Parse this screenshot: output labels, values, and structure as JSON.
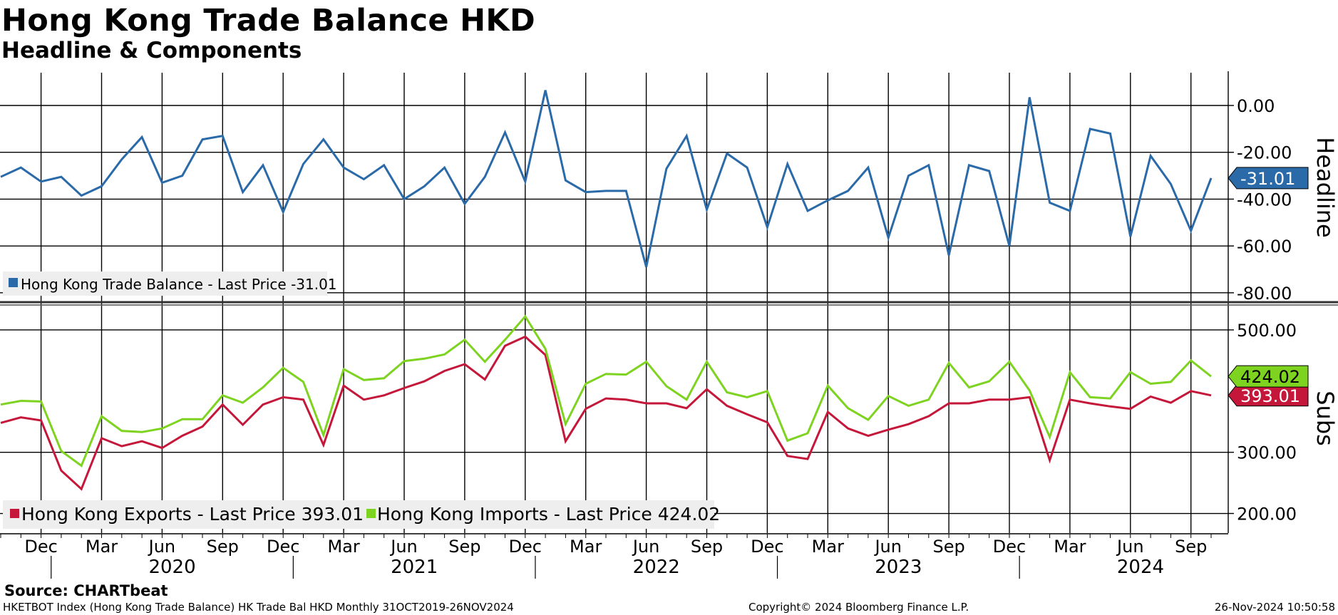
{
  "title": "Hong Kong Trade Balance HKD",
  "subtitle": "Headline & Components",
  "source": "Source: CHARTbeat",
  "footer": {
    "left": "HKETBOT Index (Hong Kong Trade Balance) HK Trade Bal HKD  Monthly 31OCT2019-26NOV2024",
    "mid": "Copyright© 2024 Bloomberg Finance L.P.",
    "right": "26-Nov-2024 10:50:58"
  },
  "colors": {
    "headline": "#2a6aa8",
    "exports": "#c4173a",
    "imports": "#7ed321",
    "grid": "#000000",
    "legend_bg": "#eeeeee"
  },
  "chart_data": [
    {
      "type": "line",
      "panel_label": "Headline",
      "ylim": [
        -84,
        14
      ],
      "yticks": [
        "0.00",
        "-20.00",
        "-40.00",
        "-60.00",
        "-80.00"
      ],
      "ytick_values": [
        0,
        -20,
        -40,
        -60,
        -80
      ],
      "x": [
        "2019-10",
        "2019-11",
        "2019-12",
        "2020-01",
        "2020-02",
        "2020-03",
        "2020-04",
        "2020-05",
        "2020-06",
        "2020-07",
        "2020-08",
        "2020-09",
        "2020-10",
        "2020-11",
        "2020-12",
        "2021-01",
        "2021-02",
        "2021-03",
        "2021-04",
        "2021-05",
        "2021-06",
        "2021-07",
        "2021-08",
        "2021-09",
        "2021-10",
        "2021-11",
        "2021-12",
        "2022-01",
        "2022-02",
        "2022-03",
        "2022-04",
        "2022-05",
        "2022-06",
        "2022-07",
        "2022-08",
        "2022-09",
        "2022-10",
        "2022-11",
        "2022-12",
        "2023-01",
        "2023-02",
        "2023-03",
        "2023-04",
        "2023-05",
        "2023-06",
        "2023-07",
        "2023-08",
        "2023-09",
        "2023-10",
        "2023-11",
        "2023-12",
        "2024-01",
        "2024-02",
        "2024-03",
        "2024-04",
        "2024-05",
        "2024-06",
        "2024-07",
        "2024-08",
        "2024-09",
        "2024-10"
      ],
      "series": [
        {
          "name": "Hong Kong Trade Balance - Last Price -31.01",
          "color_key": "headline",
          "last_value": "-31.01",
          "values": [
            -30.5,
            -26.5,
            -32.5,
            -30.5,
            -38.5,
            -34.5,
            -23,
            -13.5,
            -33,
            -30,
            -14.5,
            -13,
            -37,
            -25.5,
            -45.5,
            -25,
            -14.5,
            -26.5,
            -31.5,
            -25.5,
            -40,
            -34.5,
            -26.5,
            -42,
            -30.5,
            -11.5,
            -32.5,
            6.5,
            -32,
            -37,
            -36.5,
            -36.5,
            -69,
            -27,
            -13,
            -44.5,
            -20.5,
            -26.5,
            -52,
            -25,
            -45,
            -40.5,
            -36.5,
            -26.5,
            -56.5,
            -30,
            -25.5,
            -64,
            -25.5,
            -28,
            -60,
            3.5,
            -41.5,
            -45,
            -10,
            -12,
            -56,
            -21.5,
            -33.5,
            -53.5,
            -31.01
          ]
        }
      ]
    },
    {
      "type": "line",
      "panel_label": "Subs",
      "ylim": [
        168,
        543
      ],
      "yticks": [
        "500.00",
        "300.00",
        "200.00"
      ],
      "ytick_values": [
        500,
        300,
        200
      ],
      "x": [
        "2019-10",
        "2019-11",
        "2019-12",
        "2020-01",
        "2020-02",
        "2020-03",
        "2020-04",
        "2020-05",
        "2020-06",
        "2020-07",
        "2020-08",
        "2020-09",
        "2020-10",
        "2020-11",
        "2020-12",
        "2021-01",
        "2021-02",
        "2021-03",
        "2021-04",
        "2021-05",
        "2021-06",
        "2021-07",
        "2021-08",
        "2021-09",
        "2021-10",
        "2021-11",
        "2021-12",
        "2022-01",
        "2022-02",
        "2022-03",
        "2022-04",
        "2022-05",
        "2022-06",
        "2022-07",
        "2022-08",
        "2022-09",
        "2022-10",
        "2022-11",
        "2022-12",
        "2023-01",
        "2023-02",
        "2023-03",
        "2023-04",
        "2023-05",
        "2023-06",
        "2023-07",
        "2023-08",
        "2023-09",
        "2023-10",
        "2023-11",
        "2023-12",
        "2024-01",
        "2024-02",
        "2024-03",
        "2024-04",
        "2024-05",
        "2024-06",
        "2024-07",
        "2024-08",
        "2024-09",
        "2024-10"
      ],
      "series": [
        {
          "name": "Hong Kong Exports - Last Price 393.01",
          "color_key": "exports",
          "last_value": "393.01",
          "values": [
            348,
            357,
            352,
            270,
            240,
            323,
            310,
            318,
            307,
            327,
            342,
            378,
            345,
            378,
            390,
            386,
            312,
            409,
            386,
            393,
            405,
            416,
            433,
            444,
            419,
            474,
            489,
            459,
            318,
            371,
            388,
            386,
            380,
            380,
            372,
            403,
            376,
            362,
            349,
            294,
            289,
            366,
            339,
            327,
            337,
            346,
            359,
            380,
            380,
            386,
            386,
            390,
            287,
            386,
            380,
            375,
            371,
            391,
            381,
            400,
            393.01
          ]
        },
        {
          "name": "Hong Kong Imports - Last Price 424.02",
          "color_key": "imports",
          "last_value": "424.02",
          "values": [
            378,
            384,
            383,
            302,
            278,
            359,
            335,
            333,
            339,
            354,
            354,
            393,
            381,
            406,
            438,
            415,
            328,
            436,
            418,
            421,
            449,
            453,
            460,
            484,
            448,
            484,
            522,
            469,
            346,
            412,
            428,
            427,
            448,
            408,
            386,
            448,
            398,
            390,
            400,
            319,
            331,
            409,
            372,
            353,
            392,
            376,
            386,
            446,
            406,
            416,
            448,
            401,
            325,
            431,
            390,
            388,
            431,
            412,
            415,
            450,
            424.02
          ]
        }
      ]
    }
  ],
  "x_axis": {
    "month_labels": [
      "Dec",
      "Mar",
      "Jun",
      "Sep",
      "Dec",
      "Mar",
      "Jun",
      "Sep",
      "Dec",
      "Mar",
      "Jun",
      "Sep",
      "Dec",
      "Mar",
      "Jun",
      "Sep",
      "Dec",
      "Mar",
      "Jun",
      "Sep"
    ],
    "year_labels": [
      "2020",
      "2021",
      "2022",
      "2023",
      "2024"
    ]
  }
}
